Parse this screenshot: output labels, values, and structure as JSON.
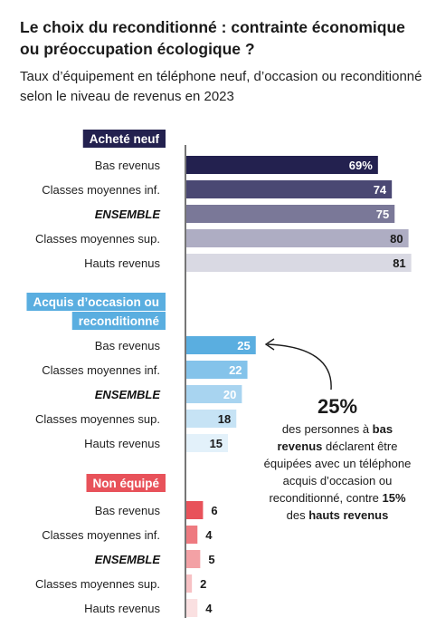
{
  "title": "Le choix du reconditionné : contrainte économique ou préoccupation écologique ?",
  "subtitle": "Taux d’équipement en téléphone neuf, d’occasion ou reconditionné selon le niveau de revenus en 2023",
  "chart_data": {
    "type": "bar",
    "orientation": "horizontal",
    "categories": [
      "Bas revenus",
      "Classes moyennes inf.",
      "ENSEMBLE",
      "Classes moyennes sup.",
      "Hauts revenus"
    ],
    "groups": [
      {
        "name": "Acheté neuf",
        "header_color": "#23214f",
        "colors": [
          "#23214f",
          "#4a4873",
          "#7a7898",
          "#aeadc3",
          "#d9d9e3"
        ],
        "value_colors": [
          "#ffffff",
          "#ffffff",
          "#ffffff",
          "#1a1a1a",
          "#1a1a1a"
        ],
        "value_position": "inside",
        "values": [
          69,
          74,
          75,
          80,
          81
        ],
        "labels": [
          "69%",
          "74",
          "75",
          "80",
          "81"
        ]
      },
      {
        "name": "Acquis d’occasion ou reconditionné",
        "header_color": "#5aaee0",
        "colors": [
          "#5aaee0",
          "#84c3ea",
          "#a8d4f0",
          "#c6e3f5",
          "#e3f1fa"
        ],
        "value_colors": [
          "#ffffff",
          "#ffffff",
          "#ffffff",
          "#1a1a1a",
          "#1a1a1a"
        ],
        "value_position": "inside",
        "values": [
          25,
          22,
          20,
          18,
          15
        ],
        "labels": [
          "25",
          "22",
          "20",
          "18",
          "15"
        ]
      },
      {
        "name": "Non équipé",
        "header_color": "#e8525a",
        "colors": [
          "#e8525a",
          "#ee7a80",
          "#f3a1a5",
          "#f7c1c4",
          "#fae0e1"
        ],
        "value_colors": [
          "#1a1a1a",
          "#1a1a1a",
          "#1a1a1a",
          "#1a1a1a",
          "#1a1a1a"
        ],
        "value_position": "outside",
        "values": [
          6,
          4,
          5,
          2,
          4
        ],
        "labels": [
          "6",
          "4",
          "5",
          "2",
          "4"
        ]
      }
    ]
  },
  "annotation": {
    "big": "25%",
    "t1": "des personnes à ",
    "b1": "bas revenus",
    "t2": " déclarent être équipées avec un téléphone acquis d’occasion ou reconditionné, contre ",
    "b2": "15%",
    "t3": " des ",
    "b3": "hauts revenus"
  }
}
